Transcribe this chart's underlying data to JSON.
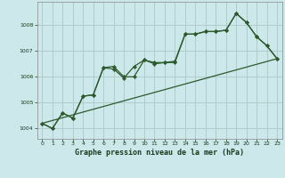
{
  "title": "Graphe pression niveau de la mer (hPa)",
  "bg_color": "#cce8eb",
  "grid_color": "#b0cccc",
  "line_color": "#2d5a2d",
  "marker_color": "#2d5a2d",
  "label_color": "#1a3a1a",
  "ylim": [
    1003.6,
    1008.9
  ],
  "xlim": [
    -0.5,
    23.5
  ],
  "yticks": [
    1004,
    1005,
    1006,
    1007,
    1008
  ],
  "xticks": [
    0,
    1,
    2,
    3,
    4,
    5,
    6,
    7,
    8,
    9,
    10,
    11,
    12,
    13,
    14,
    15,
    16,
    17,
    18,
    19,
    20,
    21,
    22,
    23
  ],
  "series1_x": [
    0,
    1,
    2,
    3,
    4,
    5,
    6,
    7,
    8,
    9,
    10,
    11,
    12,
    13,
    14,
    15,
    16,
    17,
    18,
    19,
    20,
    21,
    22,
    23
  ],
  "series1_y": [
    1004.2,
    1004.0,
    1004.6,
    1004.4,
    1005.25,
    1005.3,
    1006.35,
    1006.3,
    1005.95,
    1006.4,
    1006.65,
    1006.5,
    1006.55,
    1006.55,
    1007.65,
    1007.65,
    1007.75,
    1007.75,
    1007.8,
    1008.45,
    1008.1,
    1007.55,
    1007.2,
    1006.7
  ],
  "series2_x": [
    0,
    1,
    2,
    3,
    4,
    5,
    6,
    7,
    8,
    9,
    10,
    11,
    12,
    13,
    14,
    15,
    16,
    17,
    18,
    19,
    20,
    21,
    22,
    23
  ],
  "series2_y": [
    1004.2,
    1004.0,
    1004.6,
    1004.4,
    1005.25,
    1005.3,
    1006.35,
    1006.4,
    1006.0,
    1006.0,
    1006.65,
    1006.55,
    1006.55,
    1006.6,
    1007.65,
    1007.65,
    1007.75,
    1007.75,
    1007.8,
    1008.45,
    1008.1,
    1007.55,
    1007.2,
    1006.7
  ],
  "trend_x": [
    0,
    23
  ],
  "trend_y": [
    1004.2,
    1006.7
  ],
  "spine_color": "#888888"
}
